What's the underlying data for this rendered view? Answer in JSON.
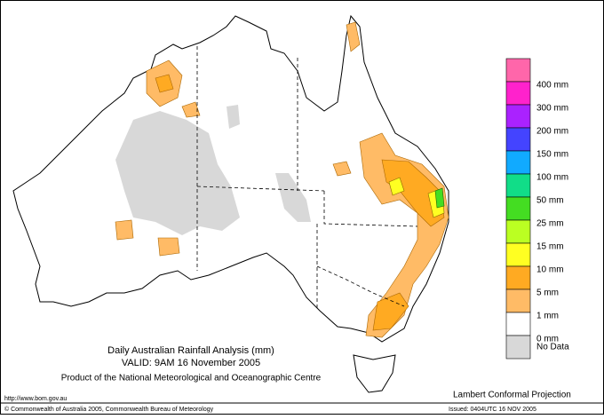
{
  "header": {
    "title": "Daily Australian Rainfall Analysis (mm)",
    "valid": "VALID: 9AM 16 November 2005",
    "product": "Product of the National Meteorological and Oceanographic Centre"
  },
  "footer": {
    "url": "http://www.bom.gov.au",
    "projection": "Lambert Conformal Projection",
    "copyright": "© Commonwealth of Australia 2005, Commonwealth Bureau of Meteorology",
    "issued": "Issued: 0404UTC 16 NOV 2005"
  },
  "legend": {
    "colors": [
      "#ff66aa",
      "#ff22cc",
      "#aa22ff",
      "#4444ff",
      "#11aaff",
      "#11dd88",
      "#44dd22",
      "#bbff22",
      "#ffff22",
      "#ffaa22",
      "#ffbb66",
      "#ffffff",
      "#d8d8d8"
    ],
    "labels": [
      "400 mm",
      "300 mm",
      "200 mm",
      "150 mm",
      "100 mm",
      "50 mm",
      "25 mm",
      "15 mm",
      "10 mm",
      "5 mm",
      "1 mm",
      "0 mm",
      "No Data"
    ]
  }
}
